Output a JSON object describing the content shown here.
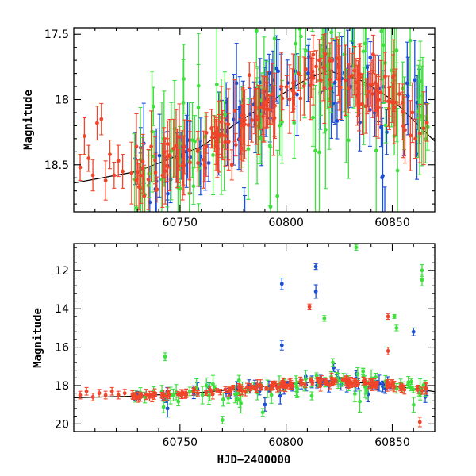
{
  "colors": {
    "blue": "#1a4fd6",
    "green": "#3ee03e",
    "red": "#f0452a",
    "model": "#000000"
  },
  "chart_data": [
    {
      "type": "scatter",
      "panel": "top",
      "xlabel": "",
      "ylabel": "Magnitude",
      "xlim": [
        60700,
        60870
      ],
      "ylim": [
        18.86,
        17.45
      ],
      "y_inverted": true,
      "xticks": [
        60750,
        60800,
        60850
      ],
      "xtick_labels": [
        "60750",
        "60800",
        "60850"
      ],
      "yticks": [
        17.5,
        18,
        18.5
      ],
      "ytick_labels": [
        "17.5",
        "18",
        "18.5"
      ],
      "model_line": {
        "x": [
          60700,
          60730,
          60760,
          60790,
          60810,
          60820,
          60835,
          60850,
          60870
        ],
        "y": [
          18.64,
          18.55,
          18.36,
          18.04,
          17.84,
          17.78,
          17.85,
          18.0,
          18.32
        ]
      },
      "series": [
        {
          "color_key": "red",
          "x": [
            60703,
            60705,
            60707,
            60709,
            60711,
            60713,
            60715,
            60717,
            60719,
            60721,
            60723
          ],
          "y": [
            18.52,
            18.28,
            18.45,
            18.58,
            18.18,
            18.15,
            18.62,
            18.42,
            18.58,
            18.47,
            18.55
          ],
          "err": [
            0.1,
            0.14,
            0.1,
            0.12,
            0.13,
            0.12,
            0.15,
            0.11,
            0.1,
            0.12,
            0.13
          ]
        }
      ],
      "synthetic_density": {
        "x_start": 60727,
        "x_end": 60867,
        "n_per_series": [
          90,
          110,
          170
        ],
        "outlier_fraction": 0.12
      }
    },
    {
      "type": "scatter",
      "panel": "bottom",
      "xlabel": "HJD−2400000",
      "ylabel": "Magnitude",
      "xlim": [
        60700,
        60870
      ],
      "ylim": [
        20.4,
        10.6
      ],
      "y_inverted": true,
      "xticks": [
        60750,
        60800,
        60850
      ],
      "xtick_labels": [
        "60750",
        "60800",
        "60850"
      ],
      "yticks": [
        12,
        14,
        16,
        18,
        20
      ],
      "ytick_labels": [
        "12",
        "14",
        "16",
        "18",
        "20"
      ],
      "model_line": {
        "x": [
          60700,
          60730,
          60760,
          60790,
          60810,
          60820,
          60835,
          60850,
          60870
        ],
        "y": [
          18.64,
          18.55,
          18.36,
          18.04,
          17.84,
          17.78,
          17.85,
          18.0,
          18.32
        ]
      },
      "series": [
        {
          "color_key": "red",
          "x": [
            60703,
            60706,
            60709,
            60712,
            60715,
            60718,
            60721,
            60724
          ],
          "y": [
            18.5,
            18.3,
            18.6,
            18.4,
            18.5,
            18.3,
            18.5,
            18.4
          ],
          "err": [
            0.2,
            0.2,
            0.2,
            0.2,
            0.2,
            0.2,
            0.2,
            0.2
          ]
        }
      ],
      "outliers": [
        {
          "color_key": "green",
          "x": 60833,
          "y": 10.8,
          "err": 0.15
        },
        {
          "color_key": "blue",
          "x": 60798,
          "y": 12.7,
          "err": 0.3
        },
        {
          "color_key": "blue",
          "x": 60814,
          "y": 11.8,
          "err": 0.15
        },
        {
          "color_key": "blue",
          "x": 60814,
          "y": 13.1,
          "err": 0.35
        },
        {
          "color_key": "red",
          "x": 60811,
          "y": 13.9,
          "err": 0.15
        },
        {
          "color_key": "green",
          "x": 60818,
          "y": 14.5,
          "err": 0.15
        },
        {
          "color_key": "blue",
          "x": 60798,
          "y": 15.9,
          "err": 0.25
        },
        {
          "color_key": "green",
          "x": 60822,
          "y": 16.8,
          "err": 0.2
        },
        {
          "color_key": "green",
          "x": 60743,
          "y": 16.5,
          "err": 0.2
        },
        {
          "color_key": "red",
          "x": 60848,
          "y": 14.4,
          "err": 0.15
        },
        {
          "color_key": "green",
          "x": 60851,
          "y": 14.4,
          "err": 0.1
        },
        {
          "color_key": "green",
          "x": 60852,
          "y": 15.0,
          "err": 0.15
        },
        {
          "color_key": "red",
          "x": 60848,
          "y": 16.2,
          "err": 0.2
        },
        {
          "color_key": "blue",
          "x": 60860,
          "y": 15.2,
          "err": 0.2
        },
        {
          "color_key": "green",
          "x": 60864,
          "y": 12.0,
          "err": 0.3
        },
        {
          "color_key": "green",
          "x": 60864,
          "y": 12.5,
          "err": 0.3
        },
        {
          "color_key": "red",
          "x": 60863,
          "y": 19.9,
          "err": 0.25
        },
        {
          "color_key": "green",
          "x": 60770,
          "y": 19.8,
          "err": 0.2
        },
        {
          "color_key": "green",
          "x": 60789,
          "y": 19.4,
          "err": 0.2
        }
      ],
      "synthetic_density": {
        "x_start": 60727,
        "x_end": 60867,
        "n_per_series": [
          60,
          80,
          150
        ],
        "outlier_fraction": 0.1
      }
    }
  ]
}
